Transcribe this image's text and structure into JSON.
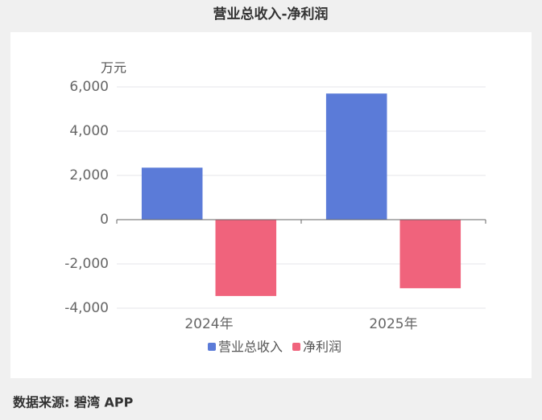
{
  "chart_data": {
    "type": "bar",
    "title": "营业总收入-净利润",
    "y_unit": "万元",
    "categories": [
      "2024年",
      "2025年"
    ],
    "series": [
      {
        "name": "营业总收入",
        "color": "#5b7bd8",
        "values": [
          2350,
          5700
        ]
      },
      {
        "name": "净利润",
        "color": "#f0637c",
        "values": [
          -3450,
          -3100
        ]
      }
    ],
    "ylim": [
      -4000,
      6000
    ],
    "yticks": [
      {
        "value": -4000,
        "label": "-4,000"
      },
      {
        "value": -2000,
        "label": "-2,000"
      },
      0,
      {
        "value": 2000,
        "label": "2,000"
      },
      {
        "value": 4000,
        "label": "4,000"
      },
      {
        "value": 6000,
        "label": "6,000"
      }
    ],
    "grid": true,
    "source": "数据来源: 碧湾 APP"
  }
}
